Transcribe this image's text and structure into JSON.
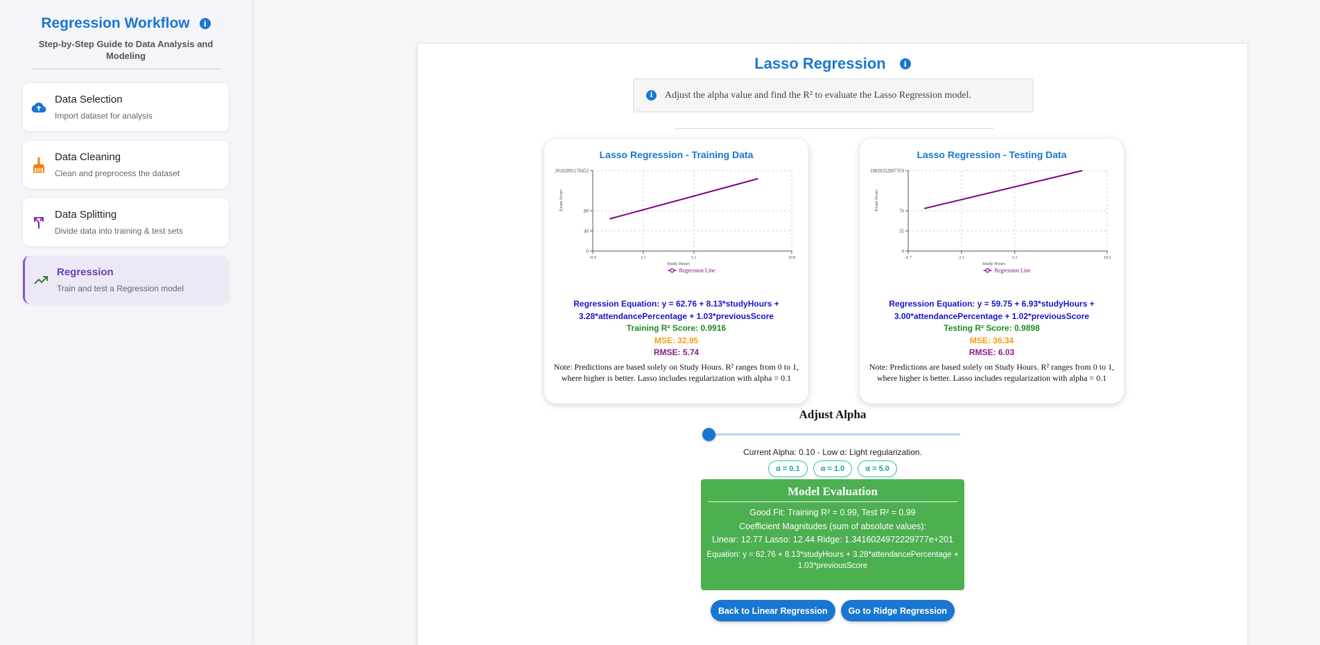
{
  "sidebar": {
    "title": "Regression Workflow",
    "subtitle": "Step-by-Step Guide to Data Analysis and Modeling",
    "items": [
      {
        "label": "Data Selection",
        "desc": "Import dataset for analysis",
        "icon": "cloud-upload-icon",
        "color": "#1976d2"
      },
      {
        "label": "Data Cleaning",
        "desc": "Clean and preprocess the dataset",
        "icon": "broom-icon",
        "color": "#f57c00"
      },
      {
        "label": "Data Splitting",
        "desc": "Divide data into training & test sets",
        "icon": "split-icon",
        "color": "#8e24aa"
      },
      {
        "label": "Regression",
        "desc": "Train and test a Regression model",
        "icon": "trending-up-icon",
        "color": "#2e7d32",
        "active": true
      }
    ]
  },
  "main": {
    "title": "Lasso Regression",
    "hint": "Adjust the alpha value and find the R² to evaluate the Lasso Regression model.",
    "train": {
      "title": "Lasso Regression - Training Data",
      "equation": "Regression Equation: y = 62.76 + 8.13*studyHours + 3.28*attendancePercentage + 1.03*previousScore",
      "r2": "Training R² Score: 0.9916",
      "mse": "MSE: 32.95",
      "rmse": "RMSE: 5.74",
      "note": "Note: Predictions are based solely on Study Hours. R² ranges from 0 to 1, where higher is better. Lasso includes regularization with alpha = 0.1"
    },
    "test": {
      "title": "Lasso Regression - Testing Data",
      "equation": "Regression Equation: y = 59.75 + 6.93*studyHours + 3.00*attendancePercentage + 1.02*previousScore",
      "r2": "Testing R² Score: 0.9898",
      "mse": "MSE: 36.34",
      "rmse": "RMSE: 6.03",
      "note": "Note: Predictions are based solely on Study Hours. R² ranges from 0 to 1, where higher is better. Lasso includes regularization with alpha = 0.1"
    },
    "alpha": {
      "title": "Adjust Alpha",
      "value": 0.1,
      "current": "Current Alpha: 0.10 - Low α: Light regularization.",
      "presets": [
        "α = 0.1",
        "α = 1.0",
        "α = 5.0"
      ]
    },
    "evaluation": {
      "title": "Model Evaluation",
      "fit": "Good Fit: Training R² = 0.99, Test R² = 0.99",
      "coef_heading": "Coefficient Magnitudes (sum of absolute values):",
      "coef_values": "Linear: 12.77 Lasso: 12.44 Ridge: 1.3416024972229777e+201",
      "equation": "Equation: y = 62.76 + 8.13*studyHours + 3.28*attendancePercentage + 1.03*previousScore"
    },
    "buttons": {
      "back": "Back to Linear Regression",
      "next": "Go to Ridge Regression"
    }
  },
  "chart_data": [
    {
      "type": "line",
      "title": "Lasso Regression - Training Data",
      "xlabel": "Study Hours",
      "ylabel": "Exam Score",
      "x_ticks": [
        "-0.9",
        "2.1",
        "5.1",
        "10.9"
      ],
      "x_tick_values": [
        -0.9,
        2.1,
        5.1,
        10.9
      ],
      "xlim": [
        -0.9,
        10.9
      ],
      "y_ticks": [
        "0",
        "40",
        "80",
        "20102091178452"
      ],
      "y_tick_pos": [
        0,
        40,
        80,
        160
      ],
      "series": [
        {
          "name": "Regression Line",
          "color": "#800080",
          "x": [
            0.1,
            8.9
          ],
          "y": [
            64,
            144
          ]
        }
      ],
      "grid": true,
      "legend": "bottom"
    },
    {
      "type": "line",
      "title": "Lasso Regression - Testing Data",
      "xlabel": "Study Hours",
      "ylabel": "Exam Score",
      "x_ticks": [
        "-0.7",
        "2.3",
        "5.3",
        "10.5"
      ],
      "x_tick_values": [
        -0.7,
        2.3,
        5.3,
        10.5
      ],
      "xlim": [
        -0.7,
        10.5
      ],
      "y_ticks": [
        "0",
        "35",
        "70",
        "18820332897359"
      ],
      "y_tick_pos": [
        0,
        35,
        70,
        140
      ],
      "series": [
        {
          "name": "Regression Line",
          "color": "#800080",
          "x": [
            0.2,
            9.1
          ],
          "y": [
            74,
            140
          ]
        }
      ],
      "grid": true,
      "legend": "bottom"
    }
  ]
}
